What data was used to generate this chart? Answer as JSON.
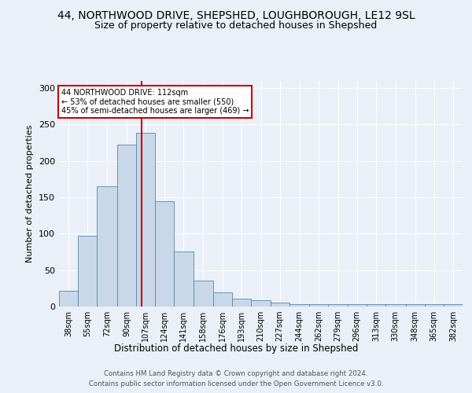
{
  "title_line1": "44, NORTHWOOD DRIVE, SHEPSHED, LOUGHBOROUGH, LE12 9SL",
  "title_line2": "Size of property relative to detached houses in Shepshed",
  "xlabel": "Distribution of detached houses by size in Shepshed",
  "ylabel": "Number of detached properties",
  "footer_line1": "Contains HM Land Registry data © Crown copyright and database right 2024.",
  "footer_line2": "Contains public sector information licensed under the Open Government Licence v3.0.",
  "bin_labels": [
    "38sqm",
    "55sqm",
    "72sqm",
    "90sqm",
    "107sqm",
    "124sqm",
    "141sqm",
    "158sqm",
    "176sqm",
    "193sqm",
    "210sqm",
    "227sqm",
    "244sqm",
    "262sqm",
    "279sqm",
    "296sqm",
    "313sqm",
    "330sqm",
    "348sqm",
    "365sqm",
    "382sqm"
  ],
  "bin_edges": [
    38,
    55,
    72,
    90,
    107,
    124,
    141,
    158,
    176,
    193,
    210,
    227,
    244,
    262,
    279,
    296,
    313,
    330,
    348,
    365,
    382
  ],
  "heights": [
    22,
    97,
    165,
    222,
    238,
    144,
    76,
    36,
    19,
    11,
    9,
    5,
    3,
    3,
    3,
    3,
    3,
    3,
    3,
    3,
    3
  ],
  "bar_color": "#c8d8e8",
  "bar_edge_color": "#5b86a8",
  "vline_x": 112,
  "vline_color": "#cc0000",
  "annotation_text": "44 NORTHWOOD DRIVE: 112sqm\n← 53% of detached houses are smaller (550)\n45% of semi-detached houses are larger (469) →",
  "annotation_box_color": "#ffffff",
  "annotation_box_edge": "#cc0000",
  "background_color": "#eaeff8",
  "plot_background": "#eaeff8",
  "yticks": [
    0,
    50,
    100,
    150,
    200,
    250,
    300
  ],
  "ylim": [
    0,
    310
  ],
  "title_fontsize": 10,
  "subtitle_fontsize": 9
}
